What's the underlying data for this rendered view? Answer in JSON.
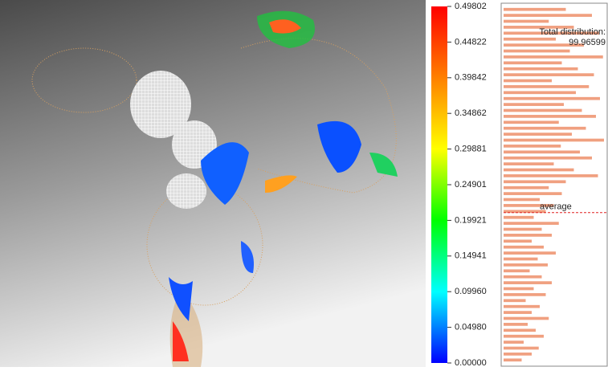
{
  "chart_data": {
    "type": "colorbar-histogram",
    "colorscale": [
      "#ff0000",
      "#ff8000",
      "#ffff00",
      "#00ff00",
      "#00ffff",
      "#0000ff"
    ],
    "ylim": [
      0,
      0.49802
    ],
    "yticks": [
      0.49802,
      0.44822,
      0.39842,
      0.34862,
      0.29881,
      0.24901,
      0.19921,
      0.14941,
      {
        "value": 0.0996,
        "label": "0.09960"
      },
      {
        "value": 0.0498,
        "label": "0.04980"
      },
      {
        "value": 0,
        "label": "0.00000"
      }
    ],
    "distribution_label": "Total distribution:",
    "distribution_value": "99.96599",
    "average_label": "average",
    "average": 0.21,
    "bar_color": "#f0a080",
    "average_color": "#e02020",
    "values": [
      62,
      88,
      45,
      70,
      95,
      52,
      80,
      66,
      99,
      58,
      74,
      90,
      48,
      85,
      72,
      96,
      60,
      78,
      92,
      55,
      82,
      68,
      100,
      57,
      76,
      88,
      50,
      70,
      94,
      62,
      45,
      58,
      36,
      50,
      42,
      30,
      55,
      38,
      48,
      28,
      40,
      52,
      34,
      44,
      26,
      38,
      48,
      30,
      42,
      22,
      36,
      28,
      45,
      24,
      32,
      40,
      20,
      35,
      28,
      18
    ]
  }
}
